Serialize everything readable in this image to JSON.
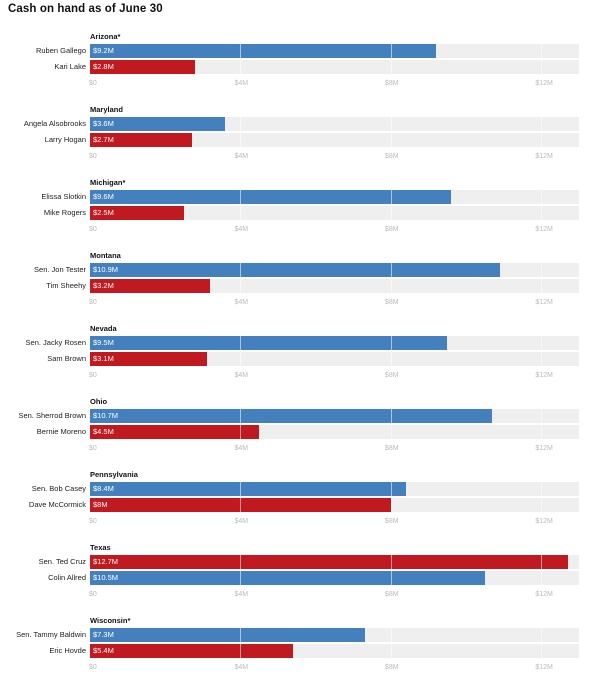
{
  "page_title": "Cash on hand as of June 30",
  "colors": {
    "dem": "#4480bd",
    "rep": "#c0191f",
    "track": "#efefef",
    "tick": "#bbbbbb"
  },
  "chart_data": [
    {
      "type": "bar",
      "title": "Arizona*",
      "xlim": [
        0,
        13
      ],
      "ticks": [
        "$0",
        "$4M",
        "$8M",
        "$12M"
      ],
      "tick_values": [
        0,
        4,
        8,
        12
      ],
      "categories": [
        "Ruben Gallego",
        "Kari Lake"
      ],
      "values": [
        9.2,
        2.8
      ],
      "labels": [
        "$9.2M",
        "$2.8M"
      ],
      "party": [
        "dem",
        "rep"
      ]
    },
    {
      "type": "bar",
      "title": "Maryland",
      "xlim": [
        0,
        13
      ],
      "ticks": [
        "$0",
        "$4M",
        "$8M",
        "$12M"
      ],
      "tick_values": [
        0,
        4,
        8,
        12
      ],
      "categories": [
        "Angela Alsobrooks",
        "Larry Hogan"
      ],
      "values": [
        3.6,
        2.7
      ],
      "labels": [
        "$3.6M",
        "$2.7M"
      ],
      "party": [
        "dem",
        "rep"
      ]
    },
    {
      "type": "bar",
      "title": "Michigan*",
      "xlim": [
        0,
        13
      ],
      "ticks": [
        "$0",
        "$4M",
        "$8M",
        "$12M"
      ],
      "tick_values": [
        0,
        4,
        8,
        12
      ],
      "categories": [
        "Elissa Slotkin",
        "Mike Rogers"
      ],
      "values": [
        9.6,
        2.5
      ],
      "labels": [
        "$9.6M",
        "$2.5M"
      ],
      "party": [
        "dem",
        "rep"
      ]
    },
    {
      "type": "bar",
      "title": "Montana",
      "xlim": [
        0,
        13
      ],
      "ticks": [
        "$0",
        "$4M",
        "$8M",
        "$12M"
      ],
      "tick_values": [
        0,
        4,
        8,
        12
      ],
      "categories": [
        "Sen. Jon Tester",
        "Tim Sheehy"
      ],
      "values": [
        10.9,
        3.2
      ],
      "labels": [
        "$10.9M",
        "$3.2M"
      ],
      "party": [
        "dem",
        "rep"
      ]
    },
    {
      "type": "bar",
      "title": "Nevada",
      "xlim": [
        0,
        13
      ],
      "ticks": [
        "$0",
        "$4M",
        "$8M",
        "$12M"
      ],
      "tick_values": [
        0,
        4,
        8,
        12
      ],
      "categories": [
        "Sen. Jacky Rosen",
        "Sam Brown"
      ],
      "values": [
        9.5,
        3.1
      ],
      "labels": [
        "$9.5M",
        "$3.1M"
      ],
      "party": [
        "dem",
        "rep"
      ]
    },
    {
      "type": "bar",
      "title": "Ohio",
      "xlim": [
        0,
        13
      ],
      "ticks": [
        "$0",
        "$4M",
        "$8M",
        "$12M"
      ],
      "tick_values": [
        0,
        4,
        8,
        12
      ],
      "categories": [
        "Sen. Sherrod Brown",
        "Bernie Moreno"
      ],
      "values": [
        10.7,
        4.5
      ],
      "labels": [
        "$10.7M",
        "$4.5M"
      ],
      "party": [
        "dem",
        "rep"
      ]
    },
    {
      "type": "bar",
      "title": "Pennsylvania",
      "xlim": [
        0,
        13
      ],
      "ticks": [
        "$0",
        "$4M",
        "$8M",
        "$12M"
      ],
      "tick_values": [
        0,
        4,
        8,
        12
      ],
      "categories": [
        "Sen. Bob Casey",
        "Dave McCormick"
      ],
      "values": [
        8.4,
        8.0
      ],
      "labels": [
        "$8.4M",
        "$8M"
      ],
      "party": [
        "dem",
        "rep"
      ]
    },
    {
      "type": "bar",
      "title": "Texas",
      "xlim": [
        0,
        13
      ],
      "ticks": [
        "$0",
        "$4M",
        "$8M",
        "$12M"
      ],
      "tick_values": [
        0,
        4,
        8,
        12
      ],
      "categories": [
        "Sen. Ted Cruz",
        "Colin Allred"
      ],
      "values": [
        12.7,
        10.5
      ],
      "labels": [
        "$12.7M",
        "$10.5M"
      ],
      "party": [
        "rep",
        "dem"
      ]
    },
    {
      "type": "bar",
      "title": "Wisconsin*",
      "xlim": [
        0,
        13
      ],
      "ticks": [
        "$0",
        "$4M",
        "$8M",
        "$12M"
      ],
      "tick_values": [
        0,
        4,
        8,
        12
      ],
      "categories": [
        "Sen. Tammy Baldwin",
        "Eric Hovde"
      ],
      "values": [
        7.3,
        5.4
      ],
      "labels": [
        "$7.3M",
        "$5.4M"
      ],
      "party": [
        "dem",
        "rep"
      ]
    }
  ]
}
